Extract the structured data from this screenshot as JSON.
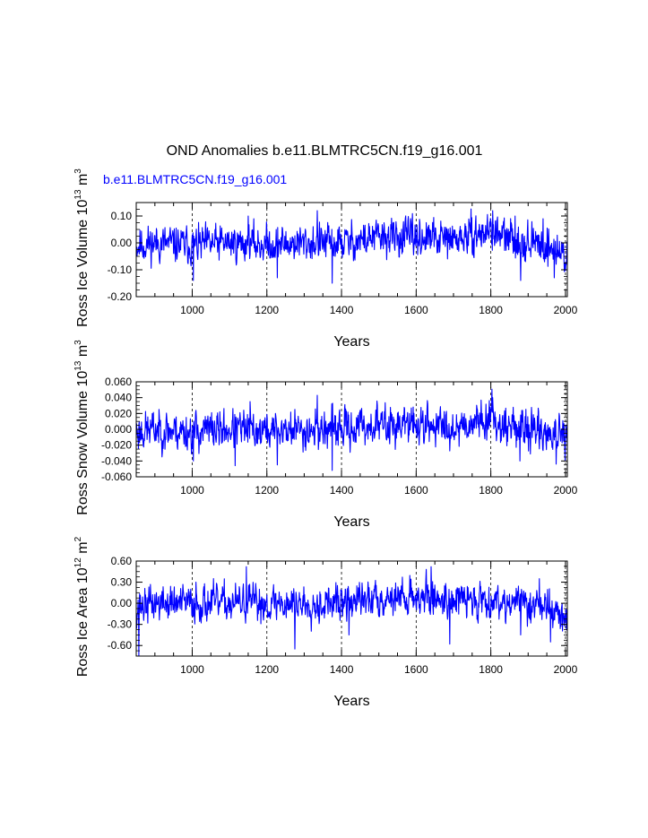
{
  "page": {
    "title": "OND Anomalies b.e11.BLMTRC5CN.f19_g16.001",
    "legend_label": "b.e11.BLMTRC5CN.f19_g16.001",
    "series_color": "#0000ff",
    "axis_color": "#000000",
    "grid_color": "#000000"
  },
  "chart_data": [
    {
      "type": "line",
      "name": "ross-ice-volume",
      "ylabel": "Ross Ice Volume",
      "ylabel_power": "10",
      "ylabel_exp": "13",
      "ylabel_unit": "m",
      "ylabel_unit_exp": "3",
      "xlabel": "Years",
      "xlim": [
        850,
        2005
      ],
      "ylim": [
        -0.2,
        0.15
      ],
      "xticks": [
        1000,
        1200,
        1400,
        1600,
        1800,
        2000
      ],
      "xtick_labels": [
        "1000",
        "1200",
        "1400",
        "1600",
        "1800",
        "2000"
      ],
      "yticks": [
        0.1,
        0.0,
        -0.1,
        -0.2
      ],
      "ytick_labels": [
        "0.10",
        "0.00",
        "-0.10",
        "-0.20"
      ],
      "grid": "vertical dashed at major x ticks",
      "amplitude": 0.045,
      "seed": 11,
      "anchors": [
        [
          850,
          -0.01
        ],
        [
          900,
          0.0
        ],
        [
          1000,
          -0.01
        ],
        [
          1100,
          0.0
        ],
        [
          1200,
          -0.005
        ],
        [
          1300,
          0.0
        ],
        [
          1400,
          0.0
        ],
        [
          1500,
          0.02
        ],
        [
          1600,
          0.02
        ],
        [
          1700,
          0.01
        ],
        [
          1790,
          0.04
        ],
        [
          1800,
          0.05
        ],
        [
          1830,
          0.02
        ],
        [
          1900,
          0.0
        ],
        [
          1950,
          -0.01
        ],
        [
          2005,
          -0.05
        ]
      ],
      "spikes": [
        [
          1003,
          -0.14
        ],
        [
          1375,
          -0.15
        ],
        [
          1335,
          0.12
        ],
        [
          1805,
          0.12
        ],
        [
          1865,
          0.1
        ],
        [
          1940,
          0.09
        ],
        [
          1970,
          -0.13
        ],
        [
          1880,
          -0.14
        ],
        [
          1150,
          0.1
        ],
        [
          1228,
          -0.13
        ]
      ]
    },
    {
      "type": "line",
      "name": "ross-snow-volume",
      "ylabel": "Ross Snow Volume",
      "ylabel_power": "10",
      "ylabel_exp": "13",
      "ylabel_unit": "m",
      "ylabel_unit_exp": "3",
      "xlabel": "Years",
      "xlim": [
        850,
        2005
      ],
      "ylim": [
        -0.06,
        0.06
      ],
      "xticks": [
        1000,
        1200,
        1400,
        1600,
        1800,
        2000
      ],
      "xtick_labels": [
        "1000",
        "1200",
        "1400",
        "1600",
        "1800",
        "2000"
      ],
      "yticks": [
        0.06,
        0.04,
        0.02,
        0.0,
        -0.02,
        -0.04,
        -0.06
      ],
      "ytick_labels": [
        "0.060",
        "0.040",
        "0.020",
        "0.000",
        "-0.020",
        "-0.040",
        "-0.060"
      ],
      "grid": "vertical dashed at major x ticks",
      "amplitude": 0.016,
      "seed": 23,
      "anchors": [
        [
          850,
          -0.003
        ],
        [
          900,
          0.0
        ],
        [
          1000,
          -0.003
        ],
        [
          1100,
          0.0
        ],
        [
          1200,
          -0.002
        ],
        [
          1300,
          0.0
        ],
        [
          1400,
          0.0
        ],
        [
          1500,
          0.006
        ],
        [
          1600,
          0.006
        ],
        [
          1700,
          0.003
        ],
        [
          1790,
          0.014
        ],
        [
          1800,
          0.018
        ],
        [
          1830,
          0.006
        ],
        [
          1900,
          0.0
        ],
        [
          1950,
          -0.004
        ],
        [
          2005,
          -0.015
        ]
      ],
      "spikes": [
        [
          1375,
          -0.052
        ],
        [
          1335,
          0.043
        ],
        [
          1805,
          0.04
        ],
        [
          1003,
          -0.04
        ],
        [
          1115,
          -0.046
        ],
        [
          1228,
          -0.045
        ],
        [
          1878,
          -0.04
        ],
        [
          1975,
          -0.044
        ],
        [
          1155,
          0.035
        ]
      ]
    },
    {
      "type": "line",
      "name": "ross-ice-area",
      "ylabel": "Ross Ice Area",
      "ylabel_power": "10",
      "ylabel_exp": "12",
      "ylabel_unit": "m",
      "ylabel_unit_exp": "2",
      "xlabel": "Years",
      "xlim": [
        850,
        2005
      ],
      "ylim": [
        -0.75,
        0.6
      ],
      "xticks": [
        1000,
        1200,
        1400,
        1600,
        1800,
        2000
      ],
      "xtick_labels": [
        "1000",
        "1200",
        "1400",
        "1600",
        "1800",
        "2000"
      ],
      "yticks": [
        0.6,
        0.3,
        0.0,
        -0.3,
        -0.6
      ],
      "ytick_labels": [
        "0.60",
        "0.30",
        "0.00",
        "-0.30",
        "-0.60"
      ],
      "grid": "vertical dashed at major x ticks",
      "amplitude": 0.17,
      "seed": 37,
      "anchors": [
        [
          850,
          -0.05
        ],
        [
          900,
          0.0
        ],
        [
          1000,
          0.0
        ],
        [
          1100,
          0.0
        ],
        [
          1200,
          0.0
        ],
        [
          1300,
          0.0
        ],
        [
          1400,
          0.0
        ],
        [
          1500,
          0.08
        ],
        [
          1600,
          0.1
        ],
        [
          1700,
          0.05
        ],
        [
          1800,
          0.05
        ],
        [
          1900,
          0.0
        ],
        [
          1950,
          -0.05
        ],
        [
          2005,
          -0.25
        ]
      ],
      "spikes": [
        [
          857,
          -0.74
        ],
        [
          1145,
          0.52
        ],
        [
          1275,
          -0.65
        ],
        [
          1640,
          0.52
        ],
        [
          1690,
          -0.58
        ],
        [
          1960,
          -0.55
        ],
        [
          1930,
          0.35
        ],
        [
          1010,
          0.3
        ],
        [
          1420,
          -0.45
        ],
        [
          1880,
          -0.45
        ]
      ]
    }
  ]
}
